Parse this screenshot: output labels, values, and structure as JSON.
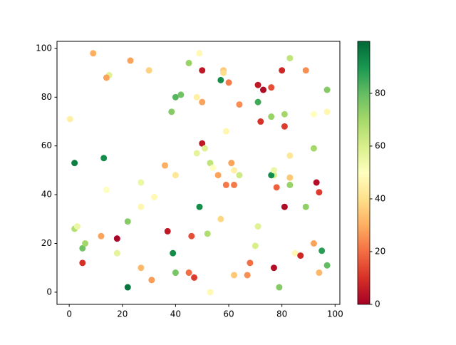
{
  "chart_data": {
    "type": "scatter",
    "x": [
      0.3,
      9,
      15,
      14,
      23,
      30,
      45,
      49,
      50,
      58,
      58,
      57,
      60,
      71,
      73,
      76,
      80,
      83,
      89,
      97,
      40,
      42,
      48,
      50,
      64,
      71,
      38.5,
      76,
      81,
      72,
      81,
      92,
      97,
      59,
      2,
      13,
      50,
      51,
      48,
      36,
      40,
      53,
      54,
      56,
      61,
      62,
      64,
      59,
      62,
      77,
      76,
      77,
      83,
      92,
      83,
      78,
      83,
      93,
      94,
      14,
      27,
      32,
      27,
      49,
      81,
      89,
      2,
      3,
      12,
      22,
      37,
      46,
      52,
      57,
      71,
      5,
      6,
      18,
      18,
      39,
      70,
      5,
      27,
      31,
      22,
      40,
      45,
      47,
      53,
      62,
      67,
      68,
      77,
      79,
      85,
      87,
      92,
      95,
      97,
      94
    ],
    "values": [
      71,
      98,
      89,
      88,
      95,
      91,
      94,
      98,
      91,
      91,
      90,
      87,
      86,
      85,
      83,
      84,
      91,
      96,
      91,
      83,
      80,
      81,
      80,
      78,
      77,
      78,
      74,
      72,
      73,
      70,
      68,
      73,
      74,
      66,
      53,
      55,
      61,
      59,
      57,
      52,
      48,
      53,
      51,
      48,
      53,
      50,
      48,
      44,
      44,
      48,
      48,
      50,
      56,
      59,
      47,
      43,
      44,
      45,
      41,
      42,
      45,
      39,
      35,
      35,
      35,
      35,
      26,
      27,
      23,
      29,
      25,
      23,
      24,
      30,
      27,
      18,
      20,
      22,
      16,
      16,
      19,
      12,
      10,
      5,
      2,
      8,
      8,
      6,
      0,
      7,
      7,
      12,
      10,
      2,
      16,
      15,
      20,
      17,
      11,
      8
    ],
    "color_values": [
      45,
      30,
      58,
      28,
      28,
      37,
      72,
      48,
      5,
      35,
      40,
      92,
      22,
      5,
      2,
      15,
      8,
      65,
      25,
      75,
      82,
      78,
      45,
      28,
      25,
      85,
      75,
      72,
      70,
      10,
      12,
      50,
      47,
      47,
      95,
      92,
      5,
      58,
      57,
      30,
      42,
      65,
      50,
      28,
      28,
      45,
      62,
      22,
      22,
      60,
      92,
      55,
      42,
      70,
      35,
      18,
      72,
      3,
      12,
      50,
      55,
      48,
      47,
      92,
      2,
      73,
      67,
      55,
      28,
      75,
      5,
      15,
      68,
      38,
      58,
      78,
      70,
      1,
      57,
      92,
      60,
      10,
      32,
      27,
      97,
      77,
      20,
      12,
      48,
      35,
      25,
      20,
      3,
      75,
      48,
      8,
      28,
      88,
      80,
      32
    ],
    "colormap": [
      "#a50026",
      "#d73027",
      "#f46d43",
      "#fdae61",
      "#fee08b",
      "#ffffbf",
      "#d9ef8b",
      "#a6d96a",
      "#66bd63",
      "#1a9850",
      "#006837"
    ],
    "xlim": [
      -4.6,
      101.8
    ],
    "ylim": [
      -5,
      102.9
    ],
    "xticks": [
      0,
      20,
      40,
      60,
      80,
      100
    ],
    "yticks": [
      0,
      20,
      40,
      60,
      80,
      100
    ],
    "clim": [
      0,
      99.7
    ],
    "cticks": [
      0,
      20,
      40,
      60,
      80
    ]
  }
}
